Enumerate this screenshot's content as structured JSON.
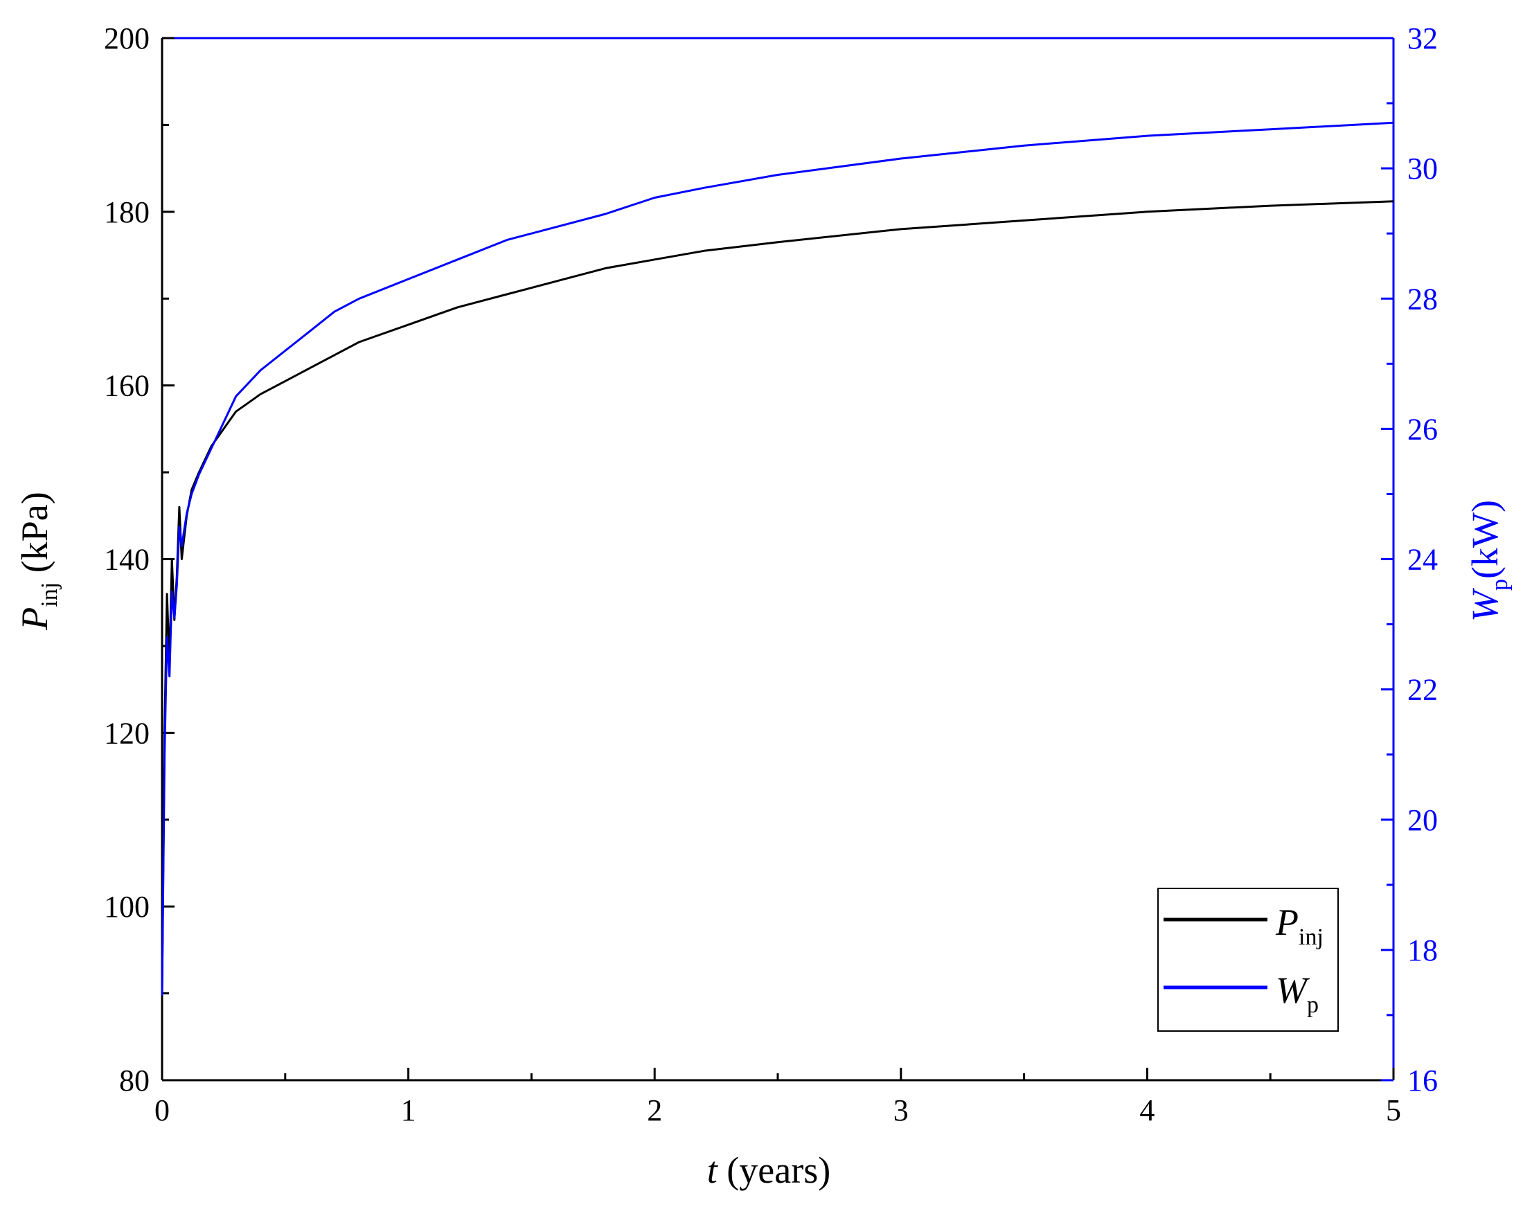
{
  "colors": {
    "left_axis": "#000000",
    "right_axis": "#0000ff",
    "series_p": "#000000",
    "series_w": "#0000ff"
  },
  "labels": {
    "x_var": "t",
    "x_unit": " (years)",
    "y_left_var": "P",
    "y_left_sub": "inj",
    "y_left_unit": " (kPa)",
    "y_right_var": "W",
    "y_right_sub": "p",
    "y_right_unit": "(kW)"
  },
  "legend": {
    "position": "bottom-right",
    "items": [
      {
        "var": "P",
        "sub": "inj"
      },
      {
        "var": "W",
        "sub": "p"
      }
    ]
  },
  "chart_data": {
    "type": "line",
    "xlabel": "t (years)",
    "ylabel_left": "P_inj (kPa)",
    "ylabel_right": "W_p(kW)",
    "xlim": [
      0,
      5
    ],
    "ylim_left": [
      80,
      200
    ],
    "ylim_right": [
      16,
      32
    ],
    "x_ticks": [
      0,
      1,
      2,
      3,
      4,
      5
    ],
    "y_left_ticks": [
      80,
      100,
      120,
      140,
      160,
      180,
      200
    ],
    "y_right_ticks": [
      16,
      18,
      20,
      22,
      24,
      26,
      28,
      30,
      32
    ],
    "grid": false,
    "series": [
      {
        "name": "P_inj",
        "axis": "left",
        "x": [
          0,
          0.01,
          0.02,
          0.03,
          0.04,
          0.05,
          0.06,
          0.07,
          0.08,
          0.1,
          0.12,
          0.15,
          0.2,
          0.25,
          0.3,
          0.35,
          0.4,
          0.5,
          0.6,
          0.7,
          0.8,
          1.0,
          1.2,
          1.4,
          1.6,
          1.8,
          2.0,
          2.2,
          2.5,
          3.0,
          3.5,
          4.0,
          4.5,
          5.0
        ],
        "y": [
          90,
          120,
          136,
          128,
          140,
          133,
          138,
          146,
          140,
          145,
          148,
          150,
          153,
          155,
          157,
          158,
          159,
          160.5,
          162,
          163.5,
          165,
          167,
          169,
          170.5,
          172,
          173.5,
          174.5,
          175.5,
          176.5,
          178,
          179,
          180,
          180.7,
          181.2
        ]
      },
      {
        "name": "W_p",
        "axis": "right",
        "x": [
          0,
          0.01,
          0.02,
          0.03,
          0.04,
          0.05,
          0.06,
          0.07,
          0.08,
          0.1,
          0.12,
          0.15,
          0.2,
          0.25,
          0.3,
          0.35,
          0.4,
          0.5,
          0.6,
          0.7,
          0.8,
          1.0,
          1.2,
          1.4,
          1.6,
          1.8,
          2.0,
          2.2,
          2.5,
          3.0,
          3.5,
          4.0,
          4.5,
          5.0
        ],
        "y": [
          17.3,
          21.0,
          22.8,
          22.2,
          23.5,
          23.1,
          23.6,
          24.5,
          24.2,
          24.7,
          25.0,
          25.3,
          25.7,
          26.1,
          26.5,
          26.7,
          26.9,
          27.2,
          27.5,
          27.8,
          28.0,
          28.3,
          28.6,
          28.9,
          29.1,
          29.3,
          29.55,
          29.7,
          29.9,
          30.15,
          30.35,
          30.5,
          30.6,
          30.7
        ]
      }
    ]
  }
}
